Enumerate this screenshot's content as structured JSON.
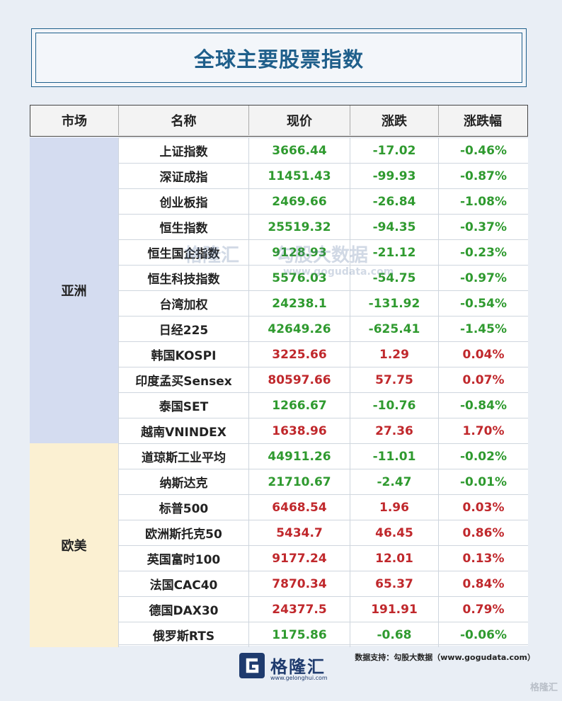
{
  "title": "全球主要股票指数",
  "columns": [
    "市场",
    "名称",
    "现价",
    "涨跌",
    "涨跌幅"
  ],
  "regions": [
    {
      "name": "亚洲",
      "rows": [
        {
          "name": "上证指数",
          "price": "3666.44",
          "change": "-17.02",
          "pct": "-0.46%",
          "dir": "down"
        },
        {
          "name": "深证成指",
          "price": "11451.43",
          "change": "-99.93",
          "pct": "-0.87%",
          "dir": "down"
        },
        {
          "name": "创业板指",
          "price": "2469.66",
          "change": "-26.84",
          "pct": "-1.08%",
          "dir": "down"
        },
        {
          "name": "恒生指数",
          "price": "25519.32",
          "change": "-94.35",
          "pct": "-0.37%",
          "dir": "down"
        },
        {
          "name": "恒生国企指数",
          "price": "9128.93",
          "change": "-21.12",
          "pct": "-0.23%",
          "dir": "down"
        },
        {
          "name": "恒生科技指数",
          "price": "5576.03",
          "change": "-54.75",
          "pct": "-0.97%",
          "dir": "down"
        },
        {
          "name": "台湾加权",
          "price": "24238.1",
          "change": "-131.92",
          "pct": "-0.54%",
          "dir": "down"
        },
        {
          "name": "日经225",
          "price": "42649.26",
          "change": "-625.41",
          "pct": "-1.45%",
          "dir": "down"
        },
        {
          "name": "韩国KOSPI",
          "price": "3225.66",
          "change": "1.29",
          "pct": "0.04%",
          "dir": "up"
        },
        {
          "name": "印度孟买Sensex",
          "price": "80597.66",
          "change": "57.75",
          "pct": "0.07%",
          "dir": "up"
        },
        {
          "name": "泰国SET",
          "price": "1266.67",
          "change": "-10.76",
          "pct": "-0.84%",
          "dir": "down"
        },
        {
          "name": "越南VNINDEX",
          "price": "1638.96",
          "change": "27.36",
          "pct": "1.70%",
          "dir": "up"
        }
      ]
    },
    {
      "name": "欧美",
      "rows": [
        {
          "name": "道琼斯工业平均",
          "price": "44911.26",
          "change": "-11.01",
          "pct": "-0.02%",
          "dir": "down"
        },
        {
          "name": "纳斯达克",
          "price": "21710.67",
          "change": "-2.47",
          "pct": "-0.01%",
          "dir": "down"
        },
        {
          "name": "标普500",
          "price": "6468.54",
          "change": "1.96",
          "pct": "0.03%",
          "dir": "up"
        },
        {
          "name": "欧洲斯托克50",
          "price": "5434.7",
          "change": "46.45",
          "pct": "0.86%",
          "dir": "up"
        },
        {
          "name": "英国富时100",
          "price": "9177.24",
          "change": "12.01",
          "pct": "0.13%",
          "dir": "up"
        },
        {
          "name": "法国CAC40",
          "price": "7870.34",
          "change": "65.37",
          "pct": "0.84%",
          "dir": "up"
        },
        {
          "name": "德国DAX30",
          "price": "24377.5",
          "change": "191.91",
          "pct": "0.79%",
          "dir": "up"
        },
        {
          "name": "俄罗斯RTS",
          "price": "1175.86",
          "change": "-0.68",
          "pct": "-0.06%",
          "dir": "down"
        }
      ]
    }
  ],
  "watermark": {
    "brand": "格隆汇",
    "product": "勾股大数据",
    "url": "www.gogudata.com",
    "brand_url": "www.gelonghui.com"
  },
  "source_note": "数据支持：勾股大数据（www.gogudata.com）",
  "logo": {
    "name": "格隆汇",
    "url": "www.gelonghui.com"
  },
  "corner_mark": "格隆汇",
  "colors": {
    "up": "#c0282c",
    "down": "#2f9a2f",
    "title": "#1f5f8b",
    "asia_bg": "#d4dcf0",
    "eu_bg": "#fbf0d2"
  },
  "icons": {
    "logo": "gelonghui-logo-icon"
  }
}
